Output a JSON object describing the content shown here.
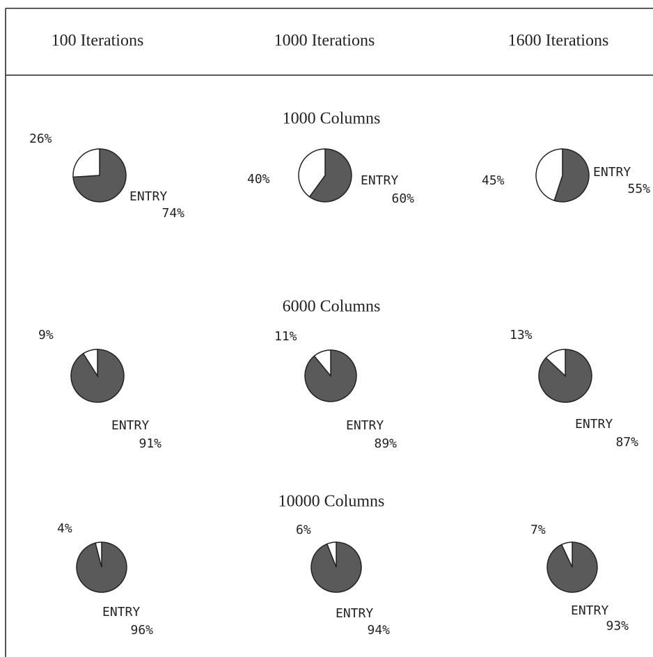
{
  "header": {
    "columns": [
      "100 Iterations",
      "1000 Iterations",
      "1600 Iterations"
    ]
  },
  "sections": [
    "1000 Columns",
    "6000 Columns",
    "10000 Columns"
  ],
  "chart_data": [
    {
      "type": "pie",
      "categories": [
        null,
        "ENTRY"
      ],
      "values": [
        26,
        74
      ],
      "value_labels": [
        "26%",
        "74%"
      ],
      "colors": [
        "#ffffff",
        "#5a5a5a"
      ]
    },
    {
      "type": "pie",
      "categories": [
        null,
        "ENTRY"
      ],
      "values": [
        40,
        60
      ],
      "value_labels": [
        "40%",
        "60%"
      ],
      "colors": [
        "#ffffff",
        "#5a5a5a"
      ]
    },
    {
      "type": "pie",
      "categories": [
        null,
        "ENTRY"
      ],
      "values": [
        45,
        55
      ],
      "value_labels": [
        "45%",
        "55%"
      ],
      "colors": [
        "#ffffff",
        "#5a5a5a"
      ]
    },
    {
      "type": "pie",
      "categories": [
        null,
        "ENTRY"
      ],
      "values": [
        9,
        91
      ],
      "value_labels": [
        "9%",
        "91%"
      ],
      "colors": [
        "#ffffff",
        "#5a5a5a"
      ]
    },
    {
      "type": "pie",
      "categories": [
        null,
        "ENTRY"
      ],
      "values": [
        11,
        89
      ],
      "value_labels": [
        "11%",
        "89%"
      ],
      "colors": [
        "#ffffff",
        "#5a5a5a"
      ]
    },
    {
      "type": "pie",
      "categories": [
        null,
        "ENTRY"
      ],
      "values": [
        13,
        87
      ],
      "value_labels": [
        "13%",
        "87%"
      ],
      "colors": [
        "#ffffff",
        "#5a5a5a"
      ]
    },
    {
      "type": "pie",
      "categories": [
        null,
        "ENTRY"
      ],
      "values": [
        4,
        96
      ],
      "value_labels": [
        "4%",
        "96%"
      ],
      "colors": [
        "#ffffff",
        "#5a5a5a"
      ]
    },
    {
      "type": "pie",
      "categories": [
        null,
        "ENTRY"
      ],
      "values": [
        6,
        94
      ],
      "value_labels": [
        "6%",
        "94%"
      ],
      "colors": [
        "#ffffff",
        "#5a5a5a"
      ]
    },
    {
      "type": "pie",
      "categories": [
        null,
        "ENTRY"
      ],
      "values": [
        7,
        93
      ],
      "value_labels": [
        "7%",
        "93%"
      ],
      "colors": [
        "#ffffff",
        "#5a5a5a"
      ]
    }
  ]
}
